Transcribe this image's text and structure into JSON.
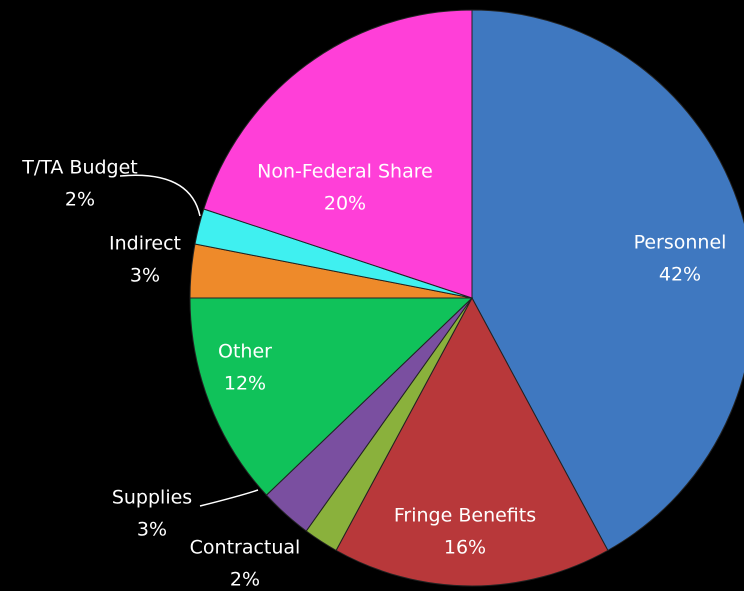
{
  "chart_data": {
    "type": "pie",
    "categories": [
      "Personnel",
      "Fringe Benefits",
      "Contractual",
      "Supplies",
      "Other",
      "Indirect",
      "T/TA Budget",
      "Non-Federal Share"
    ],
    "values": [
      42,
      16,
      2,
      3,
      12,
      3,
      2,
      20
    ],
    "value_labels": [
      "42%",
      "16%",
      "2%",
      "3%",
      "12%",
      "3%",
      "2%",
      "20%"
    ],
    "colors": [
      "#3f78c0",
      "#b8383a",
      "#8ab13c",
      "#7a4fa0",
      "#10c25a",
      "#ee8a2a",
      "#3ff0f0",
      "#ff3fd8"
    ]
  }
}
